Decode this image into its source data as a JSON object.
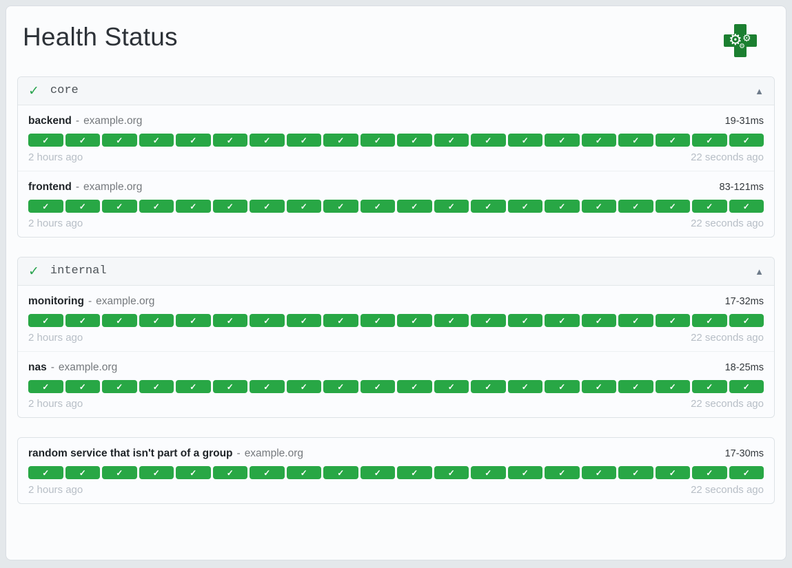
{
  "page": {
    "title": "Health Status"
  },
  "logo": {
    "gear_icon": "⚙"
  },
  "group_header": {
    "status_icon": "✓",
    "collapse_icon": "▲"
  },
  "badge": {
    "up_icon": "✓",
    "count_per_row": 20
  },
  "groups": [
    {
      "label": "core",
      "services": [
        {
          "name": "backend",
          "separator": "-",
          "host": "example.org",
          "response_time": "19-31ms",
          "oldest": "2 hours ago",
          "newest": "22 seconds ago"
        },
        {
          "name": "frontend",
          "separator": "-",
          "host": "example.org",
          "response_time": "83-121ms",
          "oldest": "2 hours ago",
          "newest": "22 seconds ago"
        }
      ]
    },
    {
      "label": "internal",
      "services": [
        {
          "name": "monitoring",
          "separator": "-",
          "host": "example.org",
          "response_time": "17-32ms",
          "oldest": "2 hours ago",
          "newest": "22 seconds ago"
        },
        {
          "name": "nas",
          "separator": "-",
          "host": "example.org",
          "response_time": "18-25ms",
          "oldest": "2 hours ago",
          "newest": "22 seconds ago"
        }
      ]
    }
  ],
  "ungrouped": {
    "services": [
      {
        "name": "random service that isn't part of a group",
        "separator": "-",
        "host": "example.org",
        "response_time": "17-30ms",
        "oldest": "2 hours ago",
        "newest": "22 seconds ago"
      }
    ]
  }
}
